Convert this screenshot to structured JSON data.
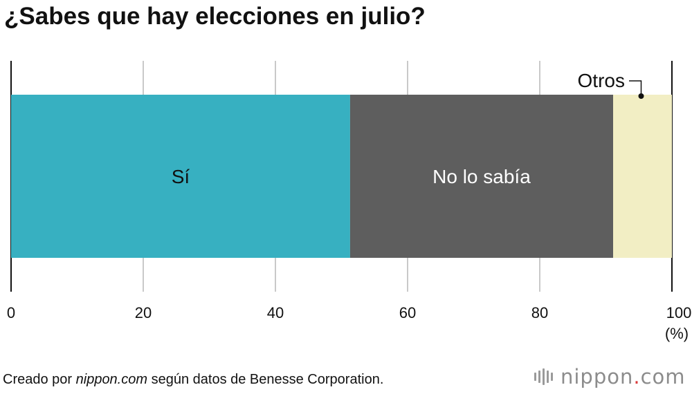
{
  "chart_data": {
    "type": "bar",
    "orientation": "horizontal",
    "stacked": true,
    "title": "¿Sabes que hay elecciones en julio?",
    "unit_label": "(%)",
    "xlim": [
      0,
      100
    ],
    "x_ticks": [
      "0",
      "20",
      "40",
      "60",
      "80",
      "100"
    ],
    "grid": true,
    "segments": [
      {
        "label": "Sí",
        "value": 51.3,
        "color": "#37b0c1",
        "label_color": "#111111"
      },
      {
        "label": "No lo sabía",
        "value": 39.8,
        "color": "#5e5e5e",
        "label_color": "#ffffff"
      },
      {
        "label": "Otros",
        "value": 8.9,
        "color": "#f2eec4",
        "label_color": "#111111",
        "callout": true
      }
    ]
  },
  "footer": {
    "source_prefix": "Creado por ",
    "source_site": "nippon.com",
    "source_suffix": " según datos de Benesse Corporation."
  },
  "brand": {
    "name": "nippon",
    "dot": ".",
    "tld": "com",
    "accent_color": "#d93b3b"
  }
}
